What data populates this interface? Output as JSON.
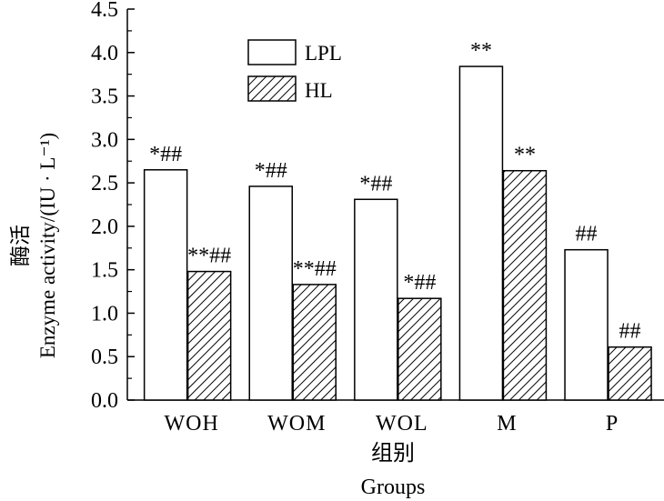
{
  "chart_data": {
    "type": "bar",
    "title": "",
    "ylabel_cn": "酶活",
    "ylabel_en": "Enzyme activity/(IU · L⁻¹)",
    "xlabel_cn": "组别",
    "xlabel_en": "Groups",
    "ylim": [
      0,
      4.5
    ],
    "yticks": [
      "0.0",
      "0.5",
      "1.0",
      "1.5",
      "2.0",
      "2.5",
      "3.0",
      "3.5",
      "4.0",
      "4.5"
    ],
    "categories": [
      "WOH",
      "WOM",
      "WOL",
      "M",
      "P"
    ],
    "legend_position": "top-center",
    "series": [
      {
        "name": "LPL",
        "pattern": "white",
        "values": [
          2.65,
          2.46,
          2.31,
          3.84,
          1.73
        ],
        "labels": [
          "*##",
          "*##",
          "*##",
          "**",
          "##"
        ]
      },
      {
        "name": "HL",
        "pattern": "hatched",
        "values": [
          1.48,
          1.33,
          1.17,
          2.64,
          0.61
        ],
        "labels": [
          "**##",
          "**##",
          "*##",
          "**",
          "##"
        ]
      }
    ]
  }
}
